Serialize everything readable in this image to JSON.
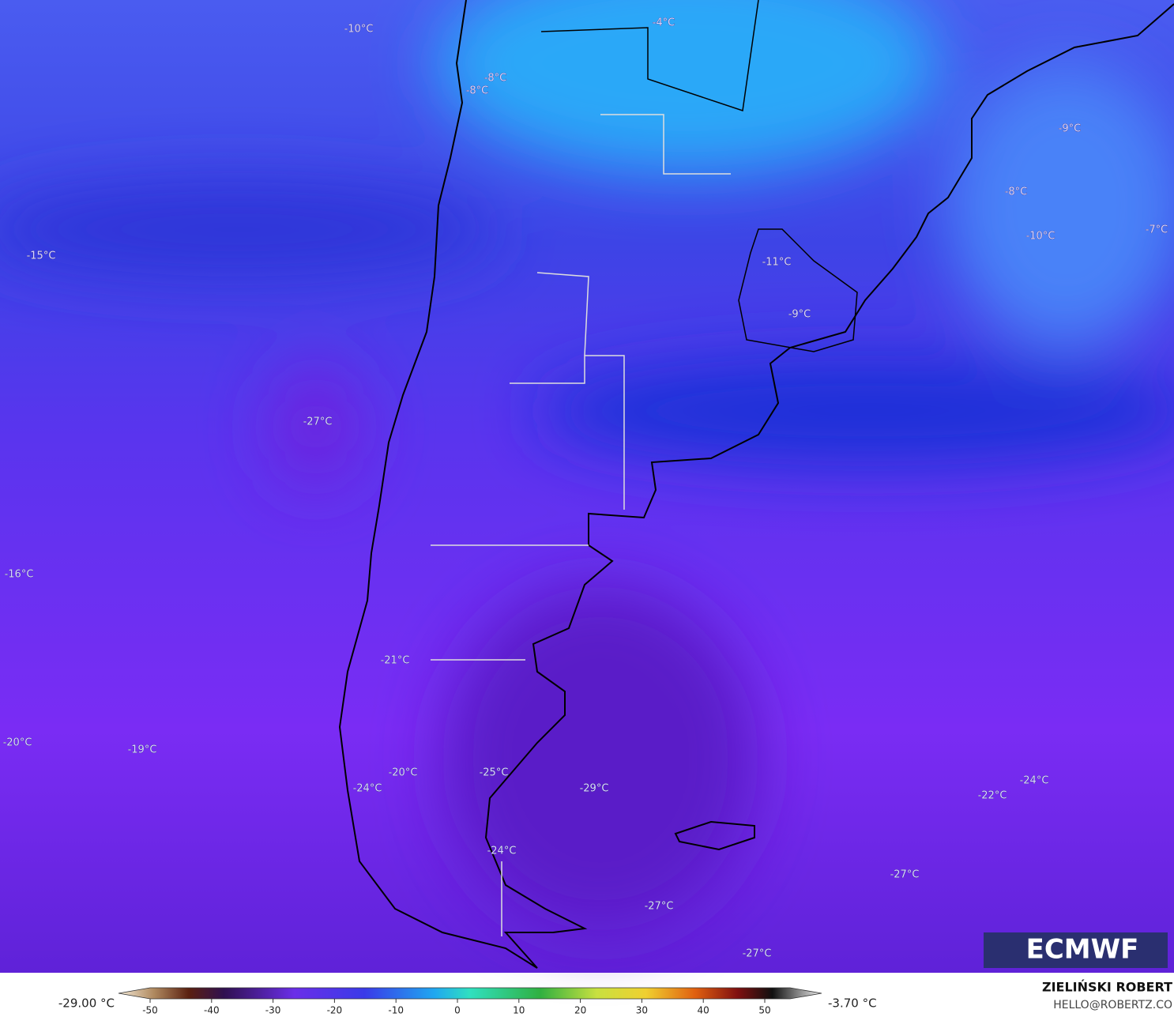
{
  "map": {
    "labels": [
      "-10°C",
      "-4°C",
      "-8°C",
      "-8°C",
      "-9°C",
      "-8°C",
      "-7°C",
      "-10°C",
      "-15°C",
      "-11°C",
      "-9°C",
      "-27°C",
      "-16°C",
      "-21°C",
      "-20°C",
      "-19°C",
      "-20°C",
      "-25°C",
      "-24°C",
      "-29°C",
      "-22°C",
      "-24°C",
      "-27°C",
      "-24°C",
      "-27°C",
      "-27°C"
    ],
    "logo": "ECMWF"
  },
  "colorbar": {
    "min_label": "-29.00 °C",
    "max_label": "-3.70 °C",
    "ticks": [
      -50,
      -40,
      -30,
      -20,
      -10,
      0,
      10,
      20,
      30,
      40,
      50
    ]
  },
  "credit": {
    "author": "ZIELIŃSKI ROBERT",
    "contact": "HELLO@ROBERTZ.CO"
  }
}
